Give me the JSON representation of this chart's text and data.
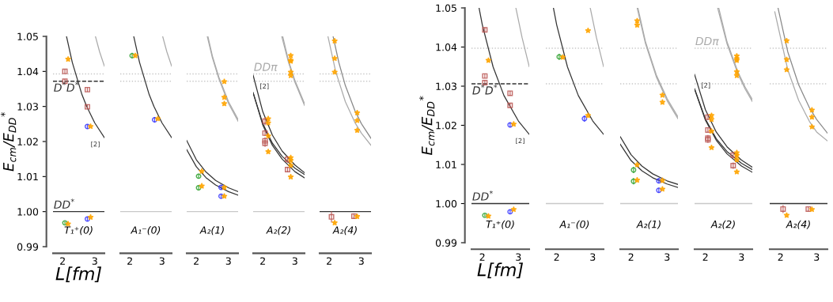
{
  "chart_data": [
    {
      "type": "scatter",
      "title": "T₁⁺(0)",
      "xlabel": "L[fm]",
      "ylabel": "E$_{cm}$/E$_{DD}$$^{*}$",
      "xlim": [
        1.7,
        3.3
      ],
      "xticks": [
        2,
        3
      ],
      "ylim": [
        0.99,
        1.05
      ],
      "yticks": [
        0.99,
        {
          "value": 1.0,
          "label": "1.00"
        },
        1.01,
        1.02,
        1.03,
        1.04,
        1.05
      ],
      "ref_lines": [
        {
          "axis": "y",
          "value": 1.0393,
          "color": "#c8c8c8",
          "line_style": "dotted"
        },
        {
          "axis": "y",
          "value": 1.0372,
          "label": "D$^{*}$D$^{*}$",
          "color": "#333333",
          "line_style": "dashed"
        },
        {
          "axis": "y",
          "value": 1.0,
          "label": "DD$^{*}$",
          "color": "#333333",
          "line_style": "solid"
        }
      ],
      "annotations": [
        "[2]"
      ],
      "series": [
        {
          "type": "line",
          "color": "#333333",
          "x": [
            2.12,
            2.3,
            2.6,
            2.75,
            3.0,
            3.3
          ],
          "values": [
            1.05,
            1.0426,
            1.0334,
            1.03,
            1.0253,
            1.0211
          ]
        },
        {
          "type": "line",
          "color": "#aaaaaa",
          "x": [
            3.02,
            3.15,
            3.3
          ],
          "values": [
            1.05,
            1.0456,
            1.0415
          ]
        },
        {
          "color": "#b85450",
          "marker": "square",
          "x": [
            2.07,
            2.07,
            2.77,
            2.77
          ],
          "values": [
            1.04,
            1.0372,
            1.0348,
            1.0299
          ],
          "errors": [
            0.0006,
            0.0006,
            0.0006,
            0.0006
          ]
        },
        {
          "color": "#3333ff",
          "marker": "circle",
          "x": [
            2.77,
            2.77
          ],
          "values": [
            1.0243,
            0.9979
          ],
          "errors": [
            0.0006,
            0.0006
          ]
        },
        {
          "color": "#2ca02c",
          "marker": "circle",
          "x": [
            2.07
          ],
          "values": [
            0.9968
          ],
          "errors": [
            0.0004
          ]
        },
        {
          "color": "#ffa500",
          "marker": "star",
          "x": [
            2.17,
            2.87,
            2.17,
            2.87
          ],
          "values": [
            1.0435,
            1.0243,
            0.9965,
            0.9984
          ]
        }
      ]
    },
    {
      "type": "scatter",
      "title": "A₁⁻(0)",
      "tick_labels": "x",
      "xlim": [
        1.7,
        3.3
      ],
      "xticks": [
        2,
        3
      ],
      "ylim": [
        0.99,
        1.05
      ],
      "ref_lines": [
        {
          "axis": "y",
          "value": 1.0393,
          "color": "#c8c8c8",
          "line_style": "dotted"
        },
        {
          "axis": "y",
          "value": 1.0372,
          "color": "#c8c8c8",
          "line_style": "dotted"
        },
        {
          "axis": "y",
          "value": 1.0,
          "color": "#c8c8c8",
          "line_style": "solid"
        }
      ],
      "series": [
        {
          "type": "line",
          "color": "#333333",
          "x": [
            2.12,
            2.3,
            2.6,
            2.75,
            3.0,
            3.3
          ],
          "values": [
            1.05,
            1.0426,
            1.0334,
            1.03,
            1.0253,
            1.0211
          ]
        },
        {
          "type": "line",
          "color": "#aaaaaa",
          "x": [
            3.02,
            3.15,
            3.3
          ],
          "values": [
            1.05,
            1.0456,
            1.0415
          ]
        },
        {
          "color": "#3333ff",
          "marker": "circle",
          "x": [
            2.77
          ],
          "values": [
            1.0262
          ],
          "errors": [
            0.0008
          ]
        },
        {
          "color": "#2ca02c",
          "marker": "circle",
          "x": [
            2.07
          ],
          "values": [
            1.0445
          ],
          "errors": [
            0.0008
          ]
        },
        {
          "color": "#ffa500",
          "marker": "star",
          "x": [
            2.17,
            2.87
          ],
          "values": [
            1.0445,
            1.0265
          ]
        }
      ]
    },
    {
      "type": "scatter",
      "title": "A₂(1)",
      "tick_labels": "x",
      "xlim": [
        1.7,
        3.3
      ],
      "xticks": [
        2,
        3
      ],
      "ylim": [
        0.99,
        1.05
      ],
      "ref_lines": [
        {
          "axis": "y",
          "value": 1.0393,
          "color": "#c8c8c8",
          "line_style": "dotted"
        },
        {
          "axis": "y",
          "value": 1.0372,
          "color": "#c8c8c8",
          "line_style": "dotted"
        },
        {
          "axis": "y",
          "value": 1.0,
          "color": "#c8c8c8",
          "line_style": "solid"
        }
      ],
      "series": [
        {
          "type": "line",
          "color": "#333333",
          "x": [
            1.7,
            2.0,
            2.3,
            2.6,
            3.0,
            3.3
          ],
          "values": [
            1.0203,
            1.0148,
            1.0113,
            1.0089,
            1.0068,
            1.0057
          ]
        },
        {
          "type": "line",
          "color": "#333333",
          "x": [
            1.7,
            2.0,
            2.3,
            2.6,
            3.0,
            3.3
          ],
          "values": [
            1.0177,
            1.0128,
            1.0097,
            1.0076,
            1.0057,
            1.0047
          ]
        },
        {
          "type": "line",
          "color": "#aaaaaa",
          "x": [
            2.34,
            2.5,
            2.7,
            3.0,
            3.3
          ],
          "values": [
            1.05,
            1.0439,
            1.0379,
            1.0309,
            1.0258
          ]
        },
        {
          "type": "line",
          "color": "#aaaaaa",
          "x": [
            2.36,
            2.5,
            2.7,
            3.0,
            3.3
          ],
          "values": [
            1.05,
            1.0444,
            1.0384,
            1.0314,
            1.0263
          ]
        },
        {
          "color": "#3333ff",
          "marker": "circle",
          "x": [
            2.77,
            2.77
          ],
          "values": [
            1.0069,
            1.0044
          ],
          "errors": [
            0.0006,
            0.0006
          ]
        },
        {
          "color": "#2ca02c",
          "marker": "circle",
          "x": [
            2.07,
            2.07
          ],
          "values": [
            1.0101,
            1.0068
          ],
          "errors": [
            0.0007,
            0.0007
          ]
        },
        {
          "color": "#ffa500",
          "marker": "star",
          "x": [
            2.17,
            2.17,
            2.87,
            2.87,
            2.87,
            2.87,
            2.87
          ],
          "values": [
            1.0115,
            1.0073,
            1.0069,
            1.0044,
            1.0371,
            1.0326,
            1.0308
          ]
        }
      ]
    },
    {
      "type": "scatter",
      "title": "A₂(2)",
      "tick_labels": "x",
      "xlim": [
        1.7,
        3.3
      ],
      "xticks": [
        2,
        3
      ],
      "ylim": [
        0.99,
        1.05
      ],
      "ref_lines": [
        {
          "axis": "y",
          "value": 1.0393,
          "label": "DDπ",
          "color": "#c8c8c8",
          "line_style": "dotted"
        },
        {
          "axis": "y",
          "value": 1.0372,
          "color": "#c8c8c8",
          "line_style": "dotted"
        },
        {
          "axis": "y",
          "value": 1.0,
          "color": "#c8c8c8",
          "line_style": "solid"
        }
      ],
      "annotations": [
        "[2]"
      ],
      "series": [
        {
          "type": "line",
          "color": "#333333",
          "x": [
            1.7,
            2.0,
            2.3,
            2.6,
            3.0,
            3.3
          ],
          "values": [
            1.0389,
            1.0285,
            1.0218,
            1.0173,
            1.0133,
            1.0111
          ]
        },
        {
          "type": "line",
          "color": "#333333",
          "x": [
            1.7,
            2.0,
            2.3,
            2.6,
            3.0,
            3.3
          ],
          "values": [
            1.0339,
            1.0251,
            1.0195,
            1.0158,
            1.0124,
            1.0106
          ]
        },
        {
          "type": "line",
          "color": "#333333",
          "x": [
            1.7,
            2.0,
            2.3,
            2.6,
            3.0,
            3.3
          ],
          "values": [
            1.0339,
            1.0247,
            1.0189,
            1.015,
            1.0114,
            1.0096
          ]
        },
        {
          "type": "line",
          "color": "#aaaaaa",
          "x": [
            2.59,
            2.8,
            3.0,
            3.3
          ],
          "values": [
            1.05,
            1.0426,
            1.0369,
            1.0303
          ]
        },
        {
          "type": "line",
          "color": "#aaaaaa",
          "x": [
            2.62,
            2.8,
            3.0,
            3.3
          ],
          "values": [
            1.05,
            1.0431,
            1.0374,
            1.0308
          ]
        },
        {
          "color": "#b85450",
          "marker": "square",
          "x": [
            2.07,
            2.07,
            2.07,
            2.07,
            2.77,
            2.77
          ],
          "values": [
            1.0258,
            1.0224,
            1.0202,
            1.0195,
            1.0149,
            1.012
          ],
          "errors": [
            0.0012,
            0.0008,
            0.001,
            0.001,
            0.001,
            0.0008
          ]
        },
        {
          "color": "#ffa500",
          "marker": "star",
          "x": [
            2.17,
            2.17,
            2.17,
            2.17,
            2.87,
            2.87,
            2.87,
            2.87,
            2.87,
            2.87,
            2.87,
            2.87,
            2.87
          ],
          "values": [
            1.0265,
            1.0253,
            1.0216,
            1.0171,
            1.0154,
            1.0146,
            1.0132,
            1.0099,
            1.0445,
            1.0432,
            1.0429,
            1.0398,
            1.0388
          ]
        }
      ]
    },
    {
      "type": "scatter",
      "title": "A₂(4)",
      "tick_labels": "x",
      "xlim": [
        1.7,
        3.3
      ],
      "xticks": [
        2,
        3
      ],
      "ylim": [
        0.99,
        1.05
      ],
      "ref_lines": [
        {
          "axis": "y",
          "value": 1.0393,
          "color": "#c8c8c8",
          "line_style": "dotted"
        },
        {
          "axis": "y",
          "value": 1.0372,
          "color": "#c8c8c8",
          "line_style": "dotted"
        },
        {
          "axis": "y",
          "value": 1.0,
          "color": "#333333",
          "line_style": "solid"
        }
      ],
      "series": [
        {
          "type": "line",
          "color": "#aaaaaa",
          "x": [
            1.96,
            2.2,
            2.5,
            2.8,
            3.0,
            3.3
          ],
          "values": [
            1.05,
            1.04,
            1.0314,
            1.0254,
            1.0224,
            1.0189
          ]
        },
        {
          "type": "line",
          "color": "#888888",
          "x": [
            2.12,
            2.3,
            2.5,
            2.8,
            3.0,
            3.3
          ],
          "values": [
            1.05,
            1.0425,
            1.036,
            1.0288,
            1.0251,
            1.0209
          ]
        },
        {
          "color": "#b85450",
          "marker": "square",
          "x": [
            2.07,
            2.77
          ],
          "values": [
            0.9985,
            0.9987
          ],
          "errors": [
            0.0016,
            0.0008
          ]
        },
        {
          "color": "#ffa500",
          "marker": "star",
          "x": [
            2.17,
            2.87,
            2.17,
            2.17,
            2.17,
            2.87,
            2.87,
            2.87
          ],
          "values": [
            0.9968,
            0.9986,
            1.0487,
            1.0437,
            1.0398,
            1.0282,
            1.026,
            1.0232
          ]
        }
      ]
    },
    {
      "type": "scatter",
      "title": "T₁⁺(0)",
      "xlabel": "L[fm]",
      "ylabel": "E$_{cm}$/E$_{DD}$$^{*}$",
      "xlim": [
        1.7,
        3.3
      ],
      "xticks": [
        2,
        3
      ],
      "ylim": [
        0.99,
        1.05
      ],
      "yticks": [
        0.99,
        {
          "value": 1.0,
          "label": "1.00"
        },
        1.01,
        1.02,
        1.03,
        1.04,
        1.05
      ],
      "ref_lines": [
        {
          "axis": "y",
          "value": 1.0397,
          "color": "#c8c8c8",
          "line_style": "dotted"
        },
        {
          "axis": "y",
          "value": 1.0306,
          "label": "D$^{*}$D$^{*}$",
          "color": "#333333",
          "line_style": "dashed"
        },
        {
          "axis": "y",
          "value": 1.0,
          "label": "DD$^{*}$",
          "color": "#333333",
          "line_style": "solid"
        }
      ],
      "annotations": [
        "[2]"
      ],
      "series": [
        {
          "type": "line",
          "color": "#333333",
          "x": [
            1.91,
            2.0,
            2.3,
            2.6,
            3.0,
            3.3
          ],
          "values": [
            1.05,
            1.0457,
            1.0349,
            1.0276,
            1.0211,
            1.0177
          ]
        },
        {
          "type": "line",
          "color": "#aaaaaa",
          "x": [
            2.93,
            3.1,
            3.3
          ],
          "values": [
            1.05,
            1.0425,
            1.035
          ]
        },
        {
          "color": "#b85450",
          "marker": "square",
          "x": [
            2.07,
            2.07,
            2.07,
            2.77,
            2.77
          ],
          "values": [
            1.0444,
            1.0326,
            1.0309,
            1.0282,
            1.0251
          ],
          "errors": [
            0.0006,
            0.0006,
            0.0006,
            0.0006,
            0.0006
          ]
        },
        {
          "color": "#3333ff",
          "marker": "circle",
          "x": [
            2.77,
            2.77
          ],
          "values": [
            1.0201,
            0.9979
          ],
          "errors": [
            0.0006,
            0.0006
          ]
        },
        {
          "color": "#2ca02c",
          "marker": "circle",
          "x": [
            2.07
          ],
          "values": [
            0.997
          ],
          "errors": [
            0.0004
          ]
        },
        {
          "color": "#ffa500",
          "marker": "star",
          "x": [
            2.17,
            2.87,
            2.17,
            2.87
          ],
          "values": [
            1.0366,
            1.0203,
            0.9968,
            0.9985
          ]
        }
      ]
    },
    {
      "type": "scatter",
      "title": "A₁⁻(0)",
      "tick_labels": "x",
      "xlim": [
        1.7,
        3.3
      ],
      "xticks": [
        2,
        3
      ],
      "ylim": [
        0.99,
        1.05
      ],
      "ref_lines": [
        {
          "axis": "y",
          "value": 1.0397,
          "color": "#c8c8c8",
          "line_style": "dotted"
        },
        {
          "axis": "y",
          "value": 1.0306,
          "color": "#c8c8c8",
          "line_style": "dotted"
        },
        {
          "axis": "y",
          "value": 1.0,
          "color": "#c8c8c8",
          "line_style": "solid"
        }
      ],
      "series": [
        {
          "type": "line",
          "color": "#333333",
          "x": [
            1.91,
            2.0,
            2.3,
            2.6,
            3.0,
            3.3
          ],
          "values": [
            1.05,
            1.0457,
            1.0349,
            1.0276,
            1.0211,
            1.0177
          ]
        },
        {
          "type": "line",
          "color": "#aaaaaa",
          "x": [
            2.93,
            3.1,
            3.3
          ],
          "values": [
            1.05,
            1.0425,
            1.035
          ]
        },
        {
          "color": "#3333ff",
          "marker": "circle",
          "x": [
            2.77
          ],
          "values": [
            1.0217
          ],
          "errors": [
            0.0008
          ]
        },
        {
          "color": "#2ca02c",
          "marker": "circle",
          "x": [
            2.07
          ],
          "values": [
            1.0375
          ],
          "errors": [
            0.0008
          ]
        },
        {
          "color": "#ffa500",
          "marker": "star",
          "x": [
            2.17,
            2.87,
            2.87
          ],
          "values": [
            1.0374,
            1.0225,
            1.0442
          ]
        }
      ]
    },
    {
      "type": "scatter",
      "title": "A₂(1)",
      "tick_labels": "x",
      "xlim": [
        1.7,
        3.3
      ],
      "xticks": [
        2,
        3
      ],
      "ylim": [
        0.99,
        1.05
      ],
      "ref_lines": [
        {
          "axis": "y",
          "value": 1.0397,
          "color": "#c8c8c8",
          "line_style": "dotted"
        },
        {
          "axis": "y",
          "value": 1.0306,
          "color": "#c8c8c8",
          "line_style": "dotted"
        },
        {
          "axis": "y",
          "value": 1.0,
          "color": "#c8c8c8",
          "line_style": "solid"
        }
      ],
      "series": [
        {
          "type": "line",
          "color": "#333333",
          "x": [
            1.7,
            2.0,
            2.3,
            2.6,
            3.0,
            3.3
          ],
          "values": [
            1.0171,
            1.0125,
            1.0096,
            1.0076,
            1.0058,
            1.0049
          ]
        },
        {
          "type": "line",
          "color": "#333333",
          "x": [
            1.7,
            2.0,
            2.3,
            2.6,
            3.0,
            3.3
          ],
          "values": [
            1.0152,
            1.011,
            1.0084,
            1.0066,
            1.005,
            1.0041
          ]
        },
        {
          "type": "line",
          "color": "#aaaaaa",
          "x": [
            2.17,
            2.4,
            2.7,
            3.0,
            3.3
          ],
          "values": [
            1.05,
            1.0409,
            1.0324,
            1.0263,
            1.0217
          ]
        },
        {
          "type": "line",
          "color": "#aaaaaa",
          "x": [
            2.19,
            2.4,
            2.7,
            3.0,
            3.3
          ],
          "values": [
            1.05,
            1.0414,
            1.0329,
            1.0268,
            1.0222
          ]
        },
        {
          "color": "#3333ff",
          "marker": "circle",
          "x": [
            2.77,
            2.77
          ],
          "values": [
            1.0058,
            1.0034
          ],
          "errors": [
            0.0006,
            0.0006
          ]
        },
        {
          "color": "#2ca02c",
          "marker": "circle",
          "x": [
            2.07,
            2.07
          ],
          "values": [
            1.0086,
            1.0057
          ],
          "errors": [
            0.0008,
            0.0008
          ]
        },
        {
          "color": "#ffa500",
          "marker": "star",
          "x": [
            2.17,
            2.17,
            2.87,
            2.87,
            2.17,
            2.17,
            2.87,
            2.87
          ],
          "values": [
            1.0099,
            1.006,
            1.0059,
            1.0037,
            1.0467,
            1.0456,
            1.0277,
            1.0259
          ]
        }
      ]
    },
    {
      "type": "scatter",
      "title": "A₂(2)",
      "tick_labels": "x",
      "xlim": [
        1.7,
        3.3
      ],
      "xticks": [
        2,
        3
      ],
      "ylim": [
        0.99,
        1.05
      ],
      "ref_lines": [
        {
          "axis": "y",
          "value": 1.0397,
          "label": "DDπ",
          "color": "#c8c8c8",
          "line_style": "dotted"
        },
        {
          "axis": "y",
          "value": 1.0306,
          "color": "#c8c8c8",
          "line_style": "dotted"
        },
        {
          "axis": "y",
          "value": 1.0,
          "color": "#c8c8c8",
          "line_style": "solid"
        }
      ],
      "annotations": [
        "[2]"
      ],
      "series": [
        {
          "type": "line",
          "color": "#333333",
          "x": [
            1.7,
            2.0,
            2.3,
            2.6,
            3.0,
            3.3
          ],
          "values": [
            1.033,
            1.024,
            1.0183,
            1.0145,
            1.0111,
            1.0093
          ]
        },
        {
          "type": "line",
          "color": "#333333",
          "x": [
            1.7,
            2.0,
            2.3,
            2.6,
            3.0,
            3.3
          ],
          "values": [
            1.0293,
            1.0216,
            1.0166,
            1.0133,
            1.0103,
            1.0087
          ]
        },
        {
          "type": "line",
          "color": "#333333",
          "x": [
            1.7,
            2.0,
            2.3,
            2.6,
            3.0,
            3.3
          ],
          "values": [
            1.0293,
            1.0213,
            1.0162,
            1.0127,
            1.0096,
            1.008
          ]
        },
        {
          "type": "line",
          "color": "#aaaaaa",
          "x": [
            2.34,
            2.6,
            2.9,
            3.1,
            3.3
          ],
          "values": [
            1.05,
            1.0408,
            1.0332,
            1.0293,
            1.0261
          ]
        },
        {
          "type": "line",
          "color": "#aaaaaa",
          "x": [
            2.37,
            2.6,
            2.9,
            3.1,
            3.3
          ],
          "values": [
            1.05,
            1.0413,
            1.0337,
            1.0298,
            1.0266
          ]
        },
        {
          "color": "#b85450",
          "marker": "square",
          "x": [
            2.07,
            2.07,
            2.07,
            2.07,
            2.77,
            2.77
          ],
          "values": [
            1.0221,
            1.0188,
            1.0167,
            1.0163,
            1.0124,
            1.0097
          ],
          "errors": [
            0.0008,
            0.0006,
            0.0008,
            0.0008,
            0.0008,
            0.0008
          ]
        },
        {
          "color": "#ffa500",
          "marker": "star",
          "x": [
            2.17,
            2.17,
            2.17,
            2.17,
            2.87,
            2.87,
            2.87,
            2.87,
            2.87,
            2.87,
            2.87,
            2.87,
            2.87
          ],
          "values": [
            1.0225,
            1.0215,
            1.0185,
            1.0143,
            1.013,
            1.0123,
            1.0112,
            1.0081,
            1.0377,
            1.037,
            1.0366,
            1.0337,
            1.0327
          ]
        }
      ]
    },
    {
      "type": "scatter",
      "title": "A₂(4)",
      "tick_labels": "x",
      "xlim": [
        1.7,
        3.3
      ],
      "xticks": [
        2,
        3
      ],
      "ylim": [
        0.99,
        1.05
      ],
      "ref_lines": [
        {
          "axis": "y",
          "value": 1.0397,
          "color": "#c8c8c8",
          "line_style": "dotted"
        },
        {
          "axis": "y",
          "value": 1.0306,
          "color": "#c8c8c8",
          "line_style": "dotted"
        },
        {
          "axis": "y",
          "value": 1.0,
          "color": "#333333",
          "line_style": "solid"
        }
      ],
      "series": [
        {
          "type": "line",
          "color": "#aaaaaa",
          "x": [
            1.84,
            2.2,
            2.5,
            2.8,
            3.0,
            3.3
          ],
          "values": [
            1.049,
            1.0342,
            1.0264,
            1.021,
            1.0183,
            1.016
          ]
        },
        {
          "type": "line",
          "color": "#888888",
          "x": [
            1.93,
            2.2,
            2.5,
            2.8,
            3.0,
            3.3
          ],
          "values": [
            1.05,
            1.0388,
            1.0304,
            1.0245,
            1.0215,
            1.018
          ]
        },
        {
          "color": "#b85450",
          "marker": "square",
          "x": [
            2.07,
            2.77
          ],
          "values": [
            0.9986,
            0.9986
          ],
          "errors": [
            0.001,
            0.0006
          ]
        },
        {
          "color": "#ffa500",
          "marker": "star",
          "x": [
            2.17,
            2.87,
            2.17,
            2.17,
            2.17,
            2.87,
            2.87,
            2.87
          ],
          "values": [
            0.997,
            0.9985,
            1.0416,
            1.0368,
            1.0342,
            1.0239,
            1.0221,
            1.0196
          ]
        }
      ]
    }
  ]
}
